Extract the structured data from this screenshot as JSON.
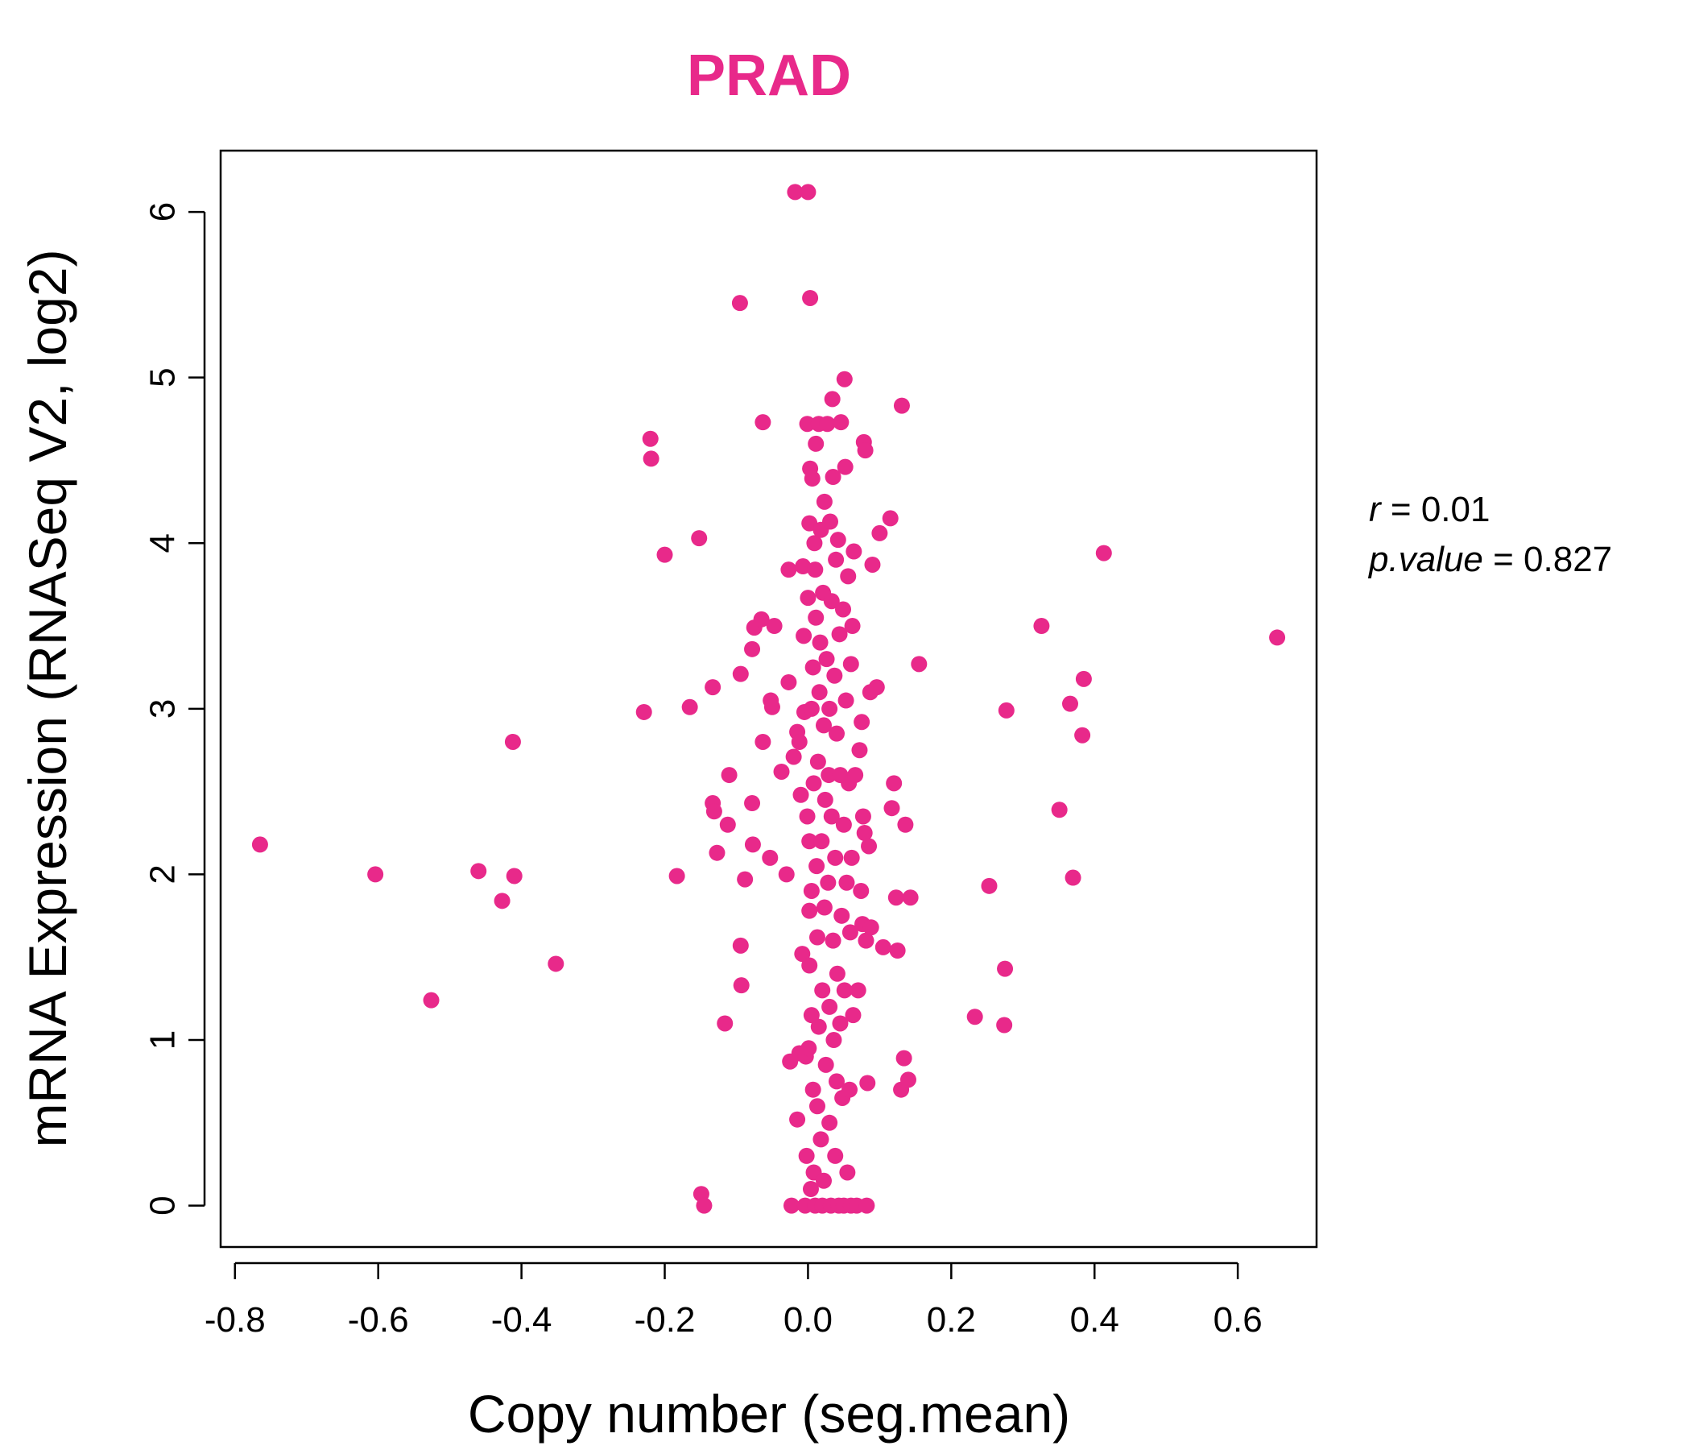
{
  "chart_data": {
    "type": "scatter",
    "title": "PRAD",
    "xlabel": "Copy number (seg.mean)",
    "ylabel": "mRNA Expression (RNASeq V2, log2)",
    "xlim": [
      -0.82,
      0.71
    ],
    "ylim": [
      -0.25,
      6.37
    ],
    "x_ticks": [
      -0.8,
      -0.6,
      -0.4,
      -0.2,
      0.0,
      0.2,
      0.4,
      0.6
    ],
    "x_tick_labels": [
      "-0.8",
      "-0.6",
      "-0.4",
      "-0.2",
      "0.0",
      "0.2",
      "0.4",
      "0.6"
    ],
    "y_ticks": [
      0,
      1,
      2,
      3,
      4,
      5,
      6
    ],
    "y_tick_labels": [
      "0",
      "1",
      "2",
      "3",
      "4",
      "5",
      "6"
    ],
    "grid": false,
    "legend": "none",
    "point_color": "#E8298A",
    "title_color": "#E8298A",
    "annotations": {
      "r_label": "r",
      "r_value": "0.01",
      "p_label": "p.value",
      "p_value": "0.827"
    },
    "series": [
      {
        "points": [
          [
            -0.765,
            2.18
          ],
          [
            -0.604,
            2.0
          ],
          [
            -0.526,
            1.24
          ],
          [
            -0.46,
            2.02
          ],
          [
            -0.427,
            1.84
          ],
          [
            -0.412,
            2.8
          ],
          [
            -0.41,
            1.99
          ],
          [
            -0.352,
            1.46
          ],
          [
            -0.229,
            2.98
          ],
          [
            -0.22,
            4.63
          ],
          [
            -0.219,
            4.51
          ],
          [
            -0.2,
            3.93
          ],
          [
            -0.183,
            1.99
          ],
          [
            -0.165,
            3.01
          ],
          [
            -0.152,
            4.03
          ],
          [
            -0.149,
            0.07
          ],
          [
            -0.145,
            0.0
          ],
          [
            -0.133,
            3.13
          ],
          [
            -0.133,
            2.43
          ],
          [
            -0.131,
            2.38
          ],
          [
            -0.127,
            2.13
          ],
          [
            -0.116,
            1.1
          ],
          [
            -0.112,
            2.3
          ],
          [
            -0.11,
            2.6
          ],
          [
            -0.095,
            5.45
          ],
          [
            -0.094,
            3.21
          ],
          [
            -0.094,
            1.57
          ],
          [
            -0.093,
            1.33
          ],
          [
            -0.088,
            1.97
          ],
          [
            -0.078,
            2.43
          ],
          [
            -0.078,
            3.36
          ],
          [
            -0.077,
            2.18
          ],
          [
            -0.075,
            3.49
          ],
          [
            -0.065,
            3.54
          ],
          [
            -0.063,
            4.73
          ],
          [
            -0.063,
            2.8
          ],
          [
            -0.053,
            2.1
          ],
          [
            -0.052,
            3.05
          ],
          [
            -0.05,
            3.01
          ],
          [
            -0.047,
            3.5
          ],
          [
            -0.037,
            2.62
          ],
          [
            -0.03,
            2.0
          ],
          [
            -0.027,
            3.84
          ],
          [
            -0.027,
            3.16
          ],
          [
            -0.025,
            0.87
          ],
          [
            -0.023,
            0.0
          ],
          [
            -0.02,
            2.71
          ],
          [
            -0.018,
            6.12
          ],
          [
            -0.015,
            2.86
          ],
          [
            -0.015,
            0.52
          ],
          [
            -0.012,
            2.8
          ],
          [
            -0.012,
            0.92
          ],
          [
            -0.01,
            2.48
          ],
          [
            -0.008,
            1.52
          ],
          [
            -0.007,
            3.86
          ],
          [
            -0.006,
            3.44
          ],
          [
            -0.005,
            2.98
          ],
          [
            -0.004,
            0.0
          ],
          [
            -0.003,
            0.9
          ],
          [
            -0.002,
            0.3
          ],
          [
            -0.001,
            4.72
          ],
          [
            -0.001,
            2.35
          ],
          [
            0.0,
            6.12
          ],
          [
            0.0,
            3.67
          ],
          [
            0.001,
            0.95
          ],
          [
            0.002,
            4.12
          ],
          [
            0.002,
            2.2
          ],
          [
            0.002,
            1.78
          ],
          [
            0.002,
            1.45
          ],
          [
            0.003,
            5.48
          ],
          [
            0.003,
            4.45
          ],
          [
            0.004,
            0.1
          ],
          [
            0.005,
            3.0
          ],
          [
            0.005,
            1.9
          ],
          [
            0.005,
            1.15
          ],
          [
            0.006,
            4.39
          ],
          [
            0.007,
            3.25
          ],
          [
            0.007,
            0.7
          ],
          [
            0.008,
            2.55
          ],
          [
            0.008,
            0.2
          ],
          [
            0.009,
            4.0
          ],
          [
            0.01,
            3.84
          ],
          [
            0.01,
            0.0
          ],
          [
            0.011,
            4.6
          ],
          [
            0.011,
            3.55
          ],
          [
            0.012,
            2.05
          ],
          [
            0.013,
            1.62
          ],
          [
            0.013,
            0.6
          ],
          [
            0.014,
            2.68
          ],
          [
            0.015,
            4.72
          ],
          [
            0.015,
            1.08
          ],
          [
            0.016,
            3.1
          ],
          [
            0.017,
            3.4
          ],
          [
            0.018,
            4.08
          ],
          [
            0.018,
            0.4
          ],
          [
            0.019,
            2.2
          ],
          [
            0.02,
            0.0
          ],
          [
            0.02,
            1.3
          ],
          [
            0.021,
            3.7
          ],
          [
            0.022,
            2.9
          ],
          [
            0.022,
            0.15
          ],
          [
            0.023,
            4.25
          ],
          [
            0.023,
            1.8
          ],
          [
            0.024,
            2.45
          ],
          [
            0.025,
            0.85
          ],
          [
            0.026,
            3.3
          ],
          [
            0.027,
            4.72
          ],
          [
            0.028,
            1.95
          ],
          [
            0.029,
            2.6
          ],
          [
            0.03,
            0.5
          ],
          [
            0.03,
            3.0
          ],
          [
            0.03,
            1.2
          ],
          [
            0.031,
            4.13
          ],
          [
            0.032,
            0.0
          ],
          [
            0.033,
            3.65
          ],
          [
            0.033,
            2.35
          ],
          [
            0.034,
            4.87
          ],
          [
            0.035,
            1.6
          ],
          [
            0.035,
            4.4
          ],
          [
            0.036,
            1.0
          ],
          [
            0.037,
            3.2
          ],
          [
            0.038,
            0.3
          ],
          [
            0.038,
            2.1
          ],
          [
            0.039,
            3.9
          ],
          [
            0.04,
            2.85
          ],
          [
            0.04,
            0.75
          ],
          [
            0.041,
            1.4
          ],
          [
            0.042,
            4.02
          ],
          [
            0.043,
            0.0
          ],
          [
            0.044,
            3.45
          ],
          [
            0.045,
            2.6
          ],
          [
            0.045,
            1.1
          ],
          [
            0.046,
            4.73
          ],
          [
            0.047,
            1.75
          ],
          [
            0.048,
            0.65
          ],
          [
            0.049,
            3.6
          ],
          [
            0.05,
            2.3
          ],
          [
            0.05,
            0.0
          ],
          [
            0.051,
            4.99
          ],
          [
            0.051,
            1.3
          ],
          [
            0.052,
            4.46
          ],
          [
            0.053,
            3.05
          ],
          [
            0.054,
            1.95
          ],
          [
            0.055,
            0.2
          ],
          [
            0.056,
            3.8
          ],
          [
            0.057,
            2.55
          ],
          [
            0.058,
            0.7
          ],
          [
            0.059,
            1.65
          ],
          [
            0.06,
            3.27
          ],
          [
            0.06,
            0.0
          ],
          [
            0.061,
            2.1
          ],
          [
            0.062,
            3.5
          ],
          [
            0.063,
            1.15
          ],
          [
            0.064,
            3.95
          ],
          [
            0.066,
            2.6
          ],
          [
            0.068,
            0.0
          ],
          [
            0.07,
            1.3
          ],
          [
            0.072,
            2.75
          ],
          [
            0.074,
            1.9
          ],
          [
            0.075,
            2.92
          ],
          [
            0.076,
            1.7
          ],
          [
            0.077,
            2.35
          ],
          [
            0.078,
            4.61
          ],
          [
            0.079,
            2.25
          ],
          [
            0.08,
            4.56
          ],
          [
            0.081,
            1.6
          ],
          [
            0.082,
            0.0
          ],
          [
            0.083,
            0.74
          ],
          [
            0.085,
            2.17
          ],
          [
            0.087,
            3.1
          ],
          [
            0.088,
            1.68
          ],
          [
            0.09,
            3.87
          ],
          [
            0.096,
            3.13
          ],
          [
            0.1,
            4.06
          ],
          [
            0.105,
            1.56
          ],
          [
            0.115,
            4.15
          ],
          [
            0.117,
            2.4
          ],
          [
            0.12,
            2.55
          ],
          [
            0.123,
            1.86
          ],
          [
            0.125,
            1.54
          ],
          [
            0.13,
            0.7
          ],
          [
            0.131,
            4.83
          ],
          [
            0.134,
            0.89
          ],
          [
            0.136,
            2.3
          ],
          [
            0.14,
            0.76
          ],
          [
            0.143,
            1.86
          ],
          [
            0.155,
            3.27
          ],
          [
            0.233,
            1.14
          ],
          [
            0.253,
            1.93
          ],
          [
            0.274,
            1.09
          ],
          [
            0.275,
            1.43
          ],
          [
            0.277,
            2.99
          ],
          [
            0.326,
            3.5
          ],
          [
            0.351,
            2.39
          ],
          [
            0.366,
            3.03
          ],
          [
            0.37,
            1.98
          ],
          [
            0.383,
            2.84
          ],
          [
            0.385,
            3.18
          ],
          [
            0.413,
            3.94
          ],
          [
            0.655,
            3.43
          ]
        ]
      }
    ]
  }
}
